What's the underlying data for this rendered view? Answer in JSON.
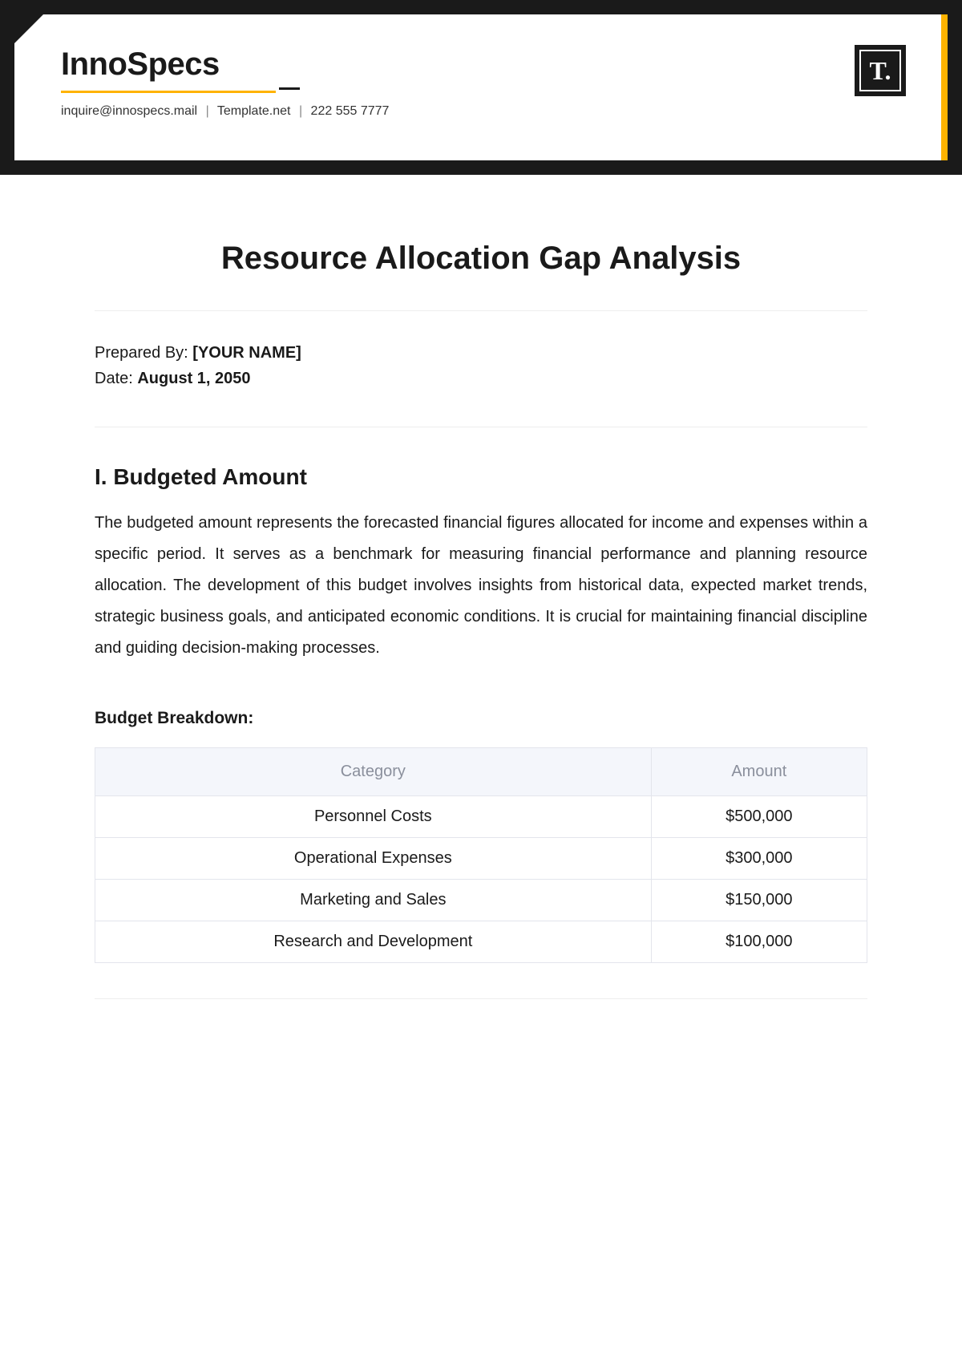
{
  "header": {
    "company_name": "InnoSpecs",
    "contact_email": "inquire@innospecs.mail",
    "contact_site": "Template.net",
    "contact_phone": "222 555 7777",
    "logo_text": "T.",
    "colors": {
      "frame": "#1a1a1a",
      "accent": "#ffb300",
      "background": "#ffffff"
    }
  },
  "document": {
    "title": "Resource Allocation Gap Analysis",
    "prepared_by_label": "Prepared By: ",
    "prepared_by_value": "[YOUR NAME]",
    "date_label": "Date: ",
    "date_value": "August 1, 2050"
  },
  "section1": {
    "heading": "I. Budgeted Amount",
    "paragraph": "The budgeted amount represents the forecasted financial figures allocated for income and expenses within a specific period. It serves as a benchmark for measuring financial performance and planning resource allocation. The development of this budget involves insights from historical data, expected market trends, strategic business goals, and anticipated economic conditions. It is crucial for maintaining financial discipline and guiding decision-making processes.",
    "subheading": "Budget Breakdown:"
  },
  "budget_table": {
    "columns": [
      "Category",
      "Amount"
    ],
    "rows": [
      [
        "Personnel Costs",
        "$500,000"
      ],
      [
        "Operational Expenses",
        "$300,000"
      ],
      [
        "Marketing and Sales",
        "$150,000"
      ],
      [
        "Research and Development",
        "$100,000"
      ]
    ],
    "header_bg": "#f4f6fb",
    "header_text_color": "#8a8f9c",
    "border_color": "#e3e5ec",
    "cell_text_color": "#1a1a1a"
  }
}
